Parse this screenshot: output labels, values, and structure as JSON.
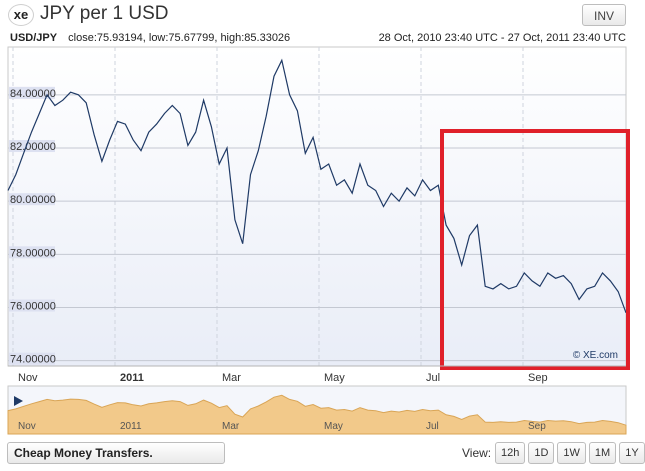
{
  "header": {
    "logo_text": "xe",
    "title": "JPY per 1 USD",
    "invert_label": "INV"
  },
  "stats": {
    "pair": "USD/JPY",
    "close": "close:75.93194,",
    "low": "low:75.67799,",
    "high": "high:85.33026",
    "date_range": "28 Oct, 2010 23:40 UTC - 27 Oct, 2011 23:40 UTC"
  },
  "watermark": "© XE.com",
  "footer": {
    "transfer_label": "Cheap Money Transfers.",
    "view_label": "View:",
    "view_buttons": [
      "12h",
      "1D",
      "1W",
      "1M",
      "1Y"
    ]
  },
  "colors": {
    "line": "#1f3a66",
    "highlight": "#e0202a",
    "navigator_fill": "#f2c98a"
  },
  "chart_data": {
    "type": "line",
    "title": "JPY per 1 USD",
    "x_tick_labels": [
      "Nov",
      "2011",
      "Mar",
      "May",
      "Jul",
      "Sep"
    ],
    "y_tick_labels": [
      "84.00000",
      "82.00000",
      "80.00000",
      "78.00000",
      "76.00000",
      "74.00000"
    ],
    "ylim": [
      73.8,
      85.8
    ],
    "y_ticks": [
      84,
      82,
      80,
      78,
      76,
      74
    ],
    "grid": true,
    "series": [
      {
        "values": [
          80.4,
          81.0,
          81.8,
          82.6,
          83.3,
          84.0,
          83.6,
          83.8,
          84.1,
          84.0,
          83.7,
          82.5,
          81.5,
          82.3,
          83.0,
          82.9,
          82.3,
          81.9,
          82.6,
          82.9,
          83.3,
          83.6,
          83.3,
          82.1,
          82.6,
          83.8,
          82.8,
          81.4,
          82.0,
          79.3,
          78.4,
          81.0,
          81.9,
          83.2,
          84.7,
          85.3,
          84.0,
          83.4,
          81.8,
          82.4,
          81.2,
          81.4,
          80.6,
          80.8,
          80.3,
          81.4,
          80.6,
          80.4,
          79.8,
          80.3,
          80.0,
          80.5,
          80.2,
          80.8,
          80.4,
          80.6,
          79.1,
          78.6,
          77.6,
          78.7,
          79.1,
          76.8,
          76.7,
          76.9,
          76.7,
          76.8,
          77.3,
          77.0,
          76.8,
          77.3,
          77.1,
          77.2,
          76.9,
          76.3,
          76.7,
          76.8,
          77.3,
          77.0,
          76.6,
          75.8
        ]
      }
    ],
    "highlight_range": [
      "Jul",
      "end"
    ],
    "navigator": {
      "x_tick_labels": [
        "Nov",
        "2011",
        "Mar",
        "May",
        "Jul",
        "Sep"
      ]
    }
  }
}
